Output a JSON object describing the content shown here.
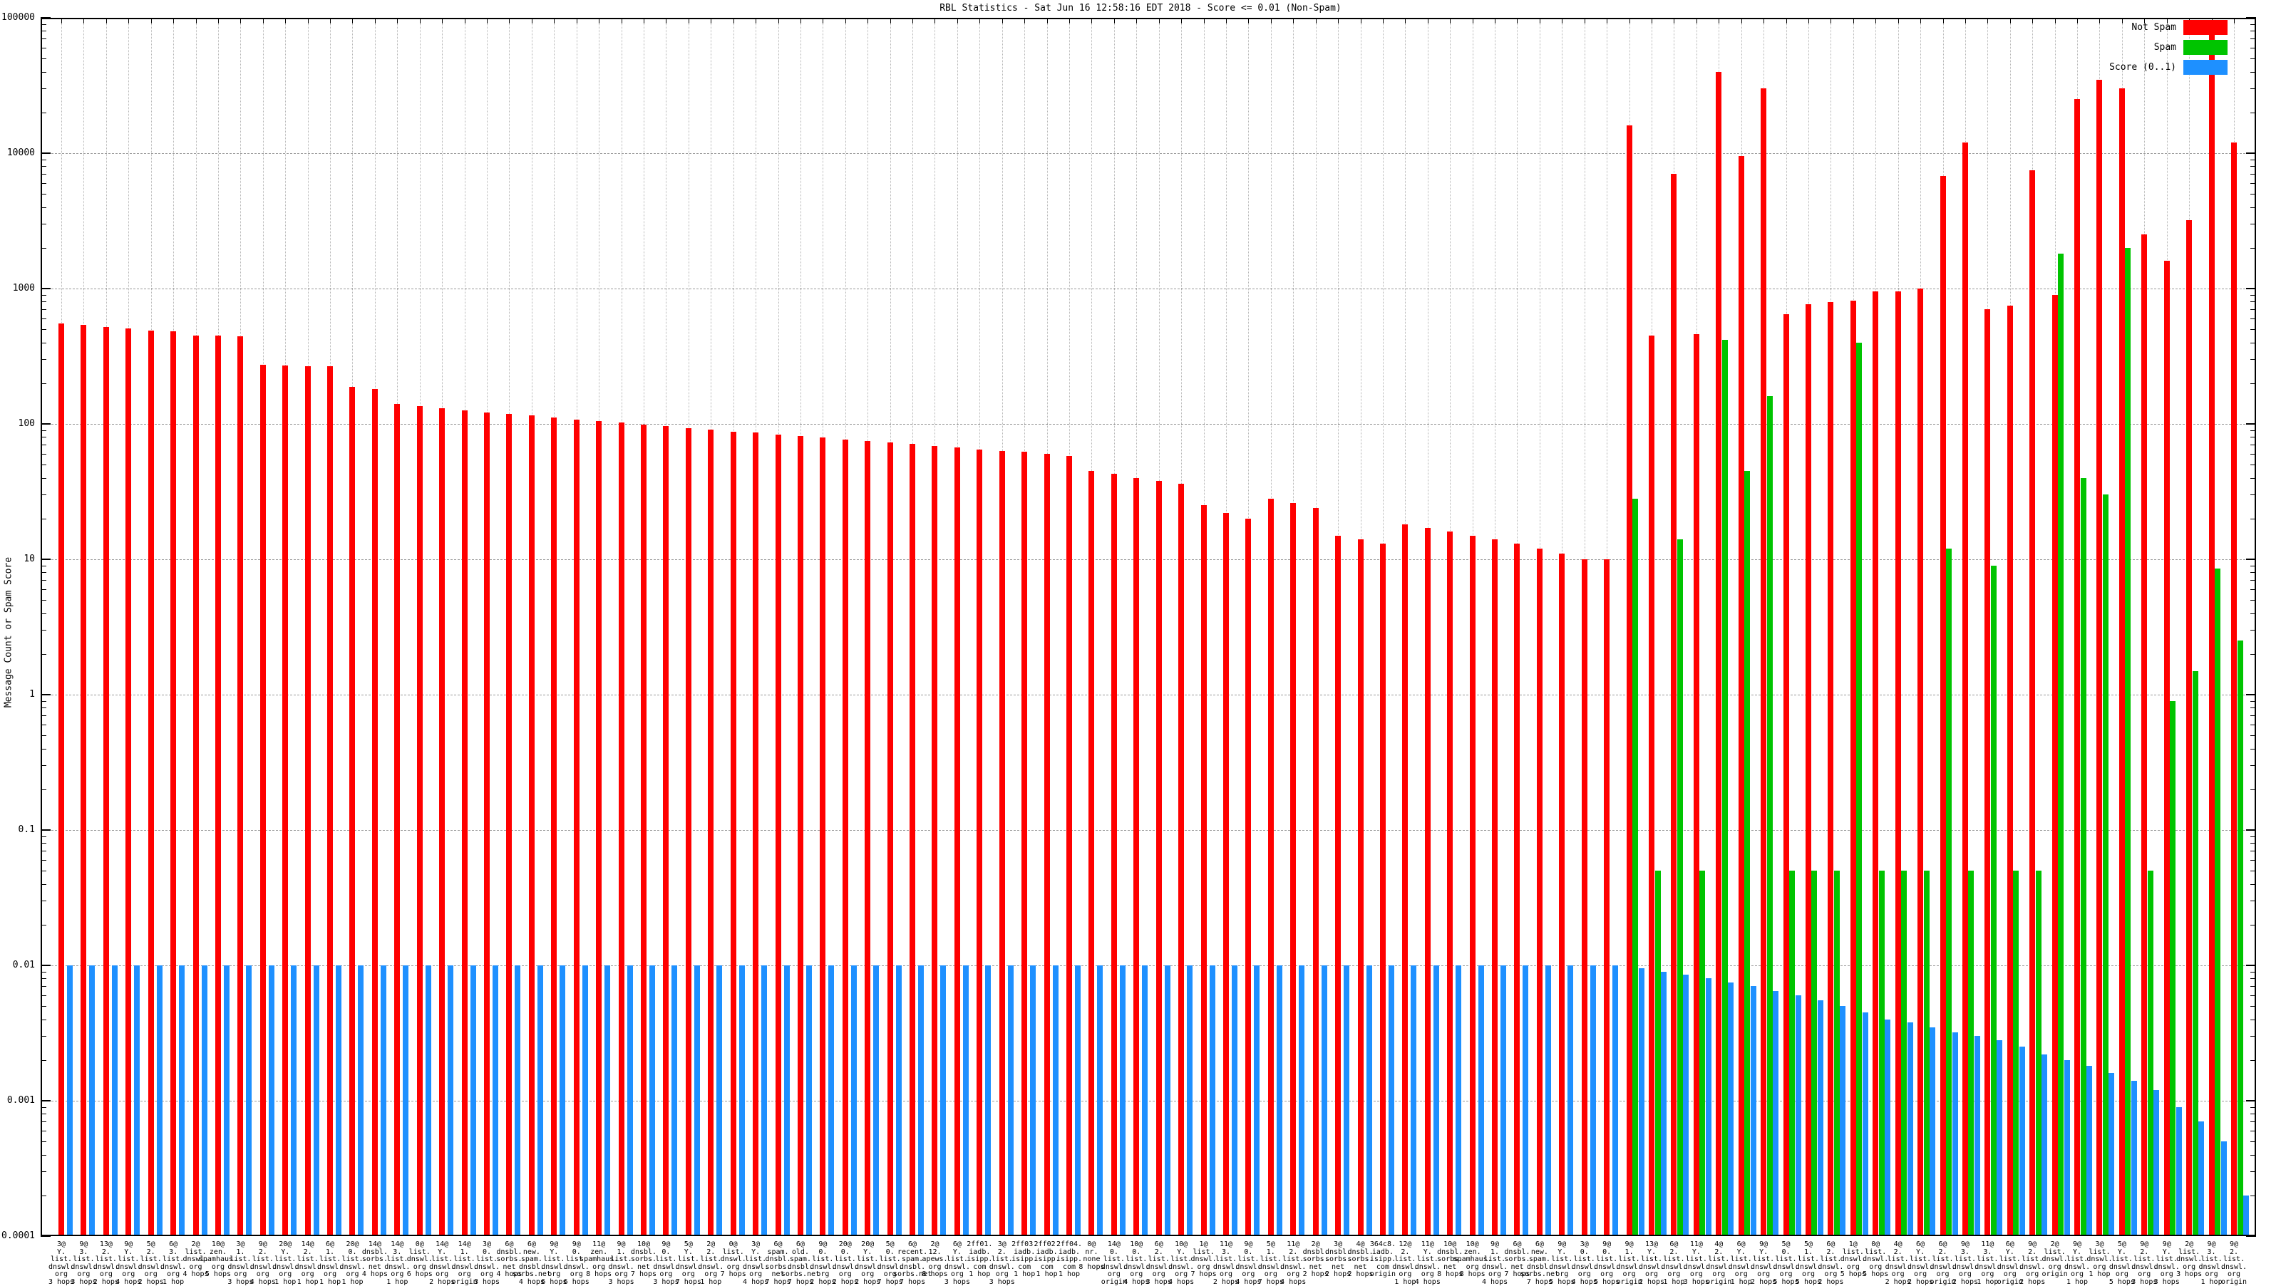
{
  "title": "RBL Statistics - Sat Jun 16 12:58:16 EDT 2018 - Score <= 0.01 (Non-Spam)",
  "ylabel": "Message Count or Spam Score",
  "legend": [
    {
      "label": "Not Spam",
      "color": "#ff0000"
    },
    {
      "label": "Spam",
      "color": "#00c400"
    },
    {
      "label": "Score (0..1)",
      "color": "#1e90ff"
    }
  ],
  "colors": {
    "not_spam": "#ff0000",
    "spam": "#00c400",
    "score": "#1e90ff",
    "grid_h": "#9a9a9a",
    "grid_v": "#b5b5b5",
    "axis": "#000000"
  },
  "y_tick_labels": [
    "100000",
    "10000",
    "1000",
    "100",
    "10",
    "1",
    "0.1",
    "0.01",
    "0.001",
    "0.0001"
  ],
  "chart_data": {
    "type": "bar",
    "y_scale": "log",
    "ylim": [
      0.0001,
      100000
    ],
    "grid": true,
    "legend_position": "top-right",
    "series_names": [
      "Not Spam",
      "Spam",
      "Score (0..1)"
    ],
    "note": "groups = [label lines joined by |, not_spam count, spam count (null = no bar), score 0..1]",
    "groups": [
      [
        "3@|Y.|list.|dnswl.|org|3 hops",
        550,
        null,
        0.01
      ],
      [
        "9@|3.|list.|dnswl.|org|3 hops",
        537,
        null,
        0.01
      ],
      [
        "13@|2.|list.|dnswl.|org|2 hops",
        520,
        null,
        0.01
      ],
      [
        "9@|Y.|list.|dnswl.|org|4 hops",
        505,
        null,
        0.01
      ],
      [
        "5@|2.|list.|dnswl.|org|2 hops",
        492,
        null,
        0.01
      ],
      [
        "6@|3.|list.|dnswl.|org|1 hop",
        483,
        null,
        0.01
      ],
      [
        "2@|list.|dnswl.|org|4 hops",
        450,
        null,
        0.01
      ],
      [
        "10@|zen.|spamhaus.|org|5 hops",
        447,
        null,
        0.01
      ],
      [
        "3@|1.|list.|dnswl.|org|3 hops",
        444,
        null,
        0.01
      ],
      [
        "9@|2.|list.|dnswl.|org|4 hops",
        273,
        null,
        0.01
      ],
      [
        "20@|Y.|list.|dnswl.|org|1 hop",
        270,
        null,
        0.01
      ],
      [
        "14@|2.|list.|dnswl.|org|1 hop",
        266,
        null,
        0.01
      ],
      [
        "6@|1.|list.|dnswl.|org|1 hop",
        266,
        null,
        0.01
      ],
      [
        "20@|0.|list.|dnswl.|org|1 hop",
        188,
        null,
        0.01
      ],
      [
        "14@|dnsbl.|sorbs.|net|4 hops",
        180,
        null,
        0.01
      ],
      [
        "14@|3.|list.|dnswl.|org|1 hop",
        140,
        null,
        0.01
      ],
      [
        "0@|list.|dnswl.|org|6 hops",
        135,
        null,
        0.01
      ],
      [
        "14@|Y.|list.|dnswl.|org|2 hops",
        130,
        null,
        0.01
      ],
      [
        "14@|1.|list.|dnswl.|org|origin",
        126,
        null,
        0.01
      ],
      [
        "3@|0.|list.|dnswl.|org|3 hops",
        122,
        null,
        0.01
      ],
      [
        "6@|dnsbl.|sorbs.|net|4 hops",
        118,
        null,
        0.01
      ],
      [
        "6@|new.|spam.|dnsbl.|sorbs.net|4 hops",
        115,
        null,
        0.01
      ],
      [
        "9@|Y.|list.|dnswl.|org|6 hops",
        111,
        null,
        0.01
      ],
      [
        "9@|0.|list.|dnswl.|org|6 hops",
        108,
        null,
        0.01
      ],
      [
        "11@|zen.|spamhaus.|org|8 hops",
        105,
        null,
        0.01
      ],
      [
        "9@|1.|list.|dnswl.|org|3 hops",
        102,
        null,
        0.01
      ],
      [
        "10@|dnsbl.|sorbs.|net|7 hops",
        99,
        null,
        0.01
      ],
      [
        "9@|0.|list.|dnswl.|org|3 hops",
        96,
        null,
        0.01
      ],
      [
        "5@|Y.|list.|dnswl.|org|7 hops",
        93,
        null,
        0.01
      ],
      [
        "2@|2.|list.|dnswl.|org|1 hop",
        91,
        null,
        0.01
      ],
      [
        "0@|list.|dnswl.|org|7 hops",
        88,
        null,
        0.01
      ],
      [
        "3@|Y.|list.|dnswl.|org|4 hops",
        86,
        null,
        0.01
      ],
      [
        "6@|spam.|dnsbl.|sorbs.|net|7 hops",
        83,
        null,
        0.01
      ],
      [
        "6@|old.|spam.|dnsbl.|sorbs.net|7 hops",
        81,
        null,
        0.01
      ],
      [
        "9@|0.|list.|dnswl.|org|2 hops",
        79,
        null,
        0.01
      ],
      [
        "20@|0.|list.|dnswl.|org|2 hops",
        77,
        null,
        0.01
      ],
      [
        "20@|Y.|list.|dnswl.|org|2 hops",
        75,
        null,
        0.01
      ],
      [
        "5@|0.|list.|dnswl.|org|7 hops",
        73,
        null,
        0.01
      ],
      [
        "6@|recent.|spam.|dnsbl.|sorbs.net|7 hops",
        71,
        null,
        0.01
      ],
      [
        "2@|12.|apews.|org|8 hops",
        69,
        null,
        0.01
      ],
      [
        "6@|Y.|list.|dnswl.|org|3 hops",
        67,
        null,
        0.01
      ],
      [
        "2ff01.|iadb.|isipp.|com|1 hop",
        65,
        null,
        0.01
      ],
      [
        "3@|2.|list.|dnswl.|org|3 hops",
        63,
        null,
        0.01
      ],
      [
        "2ff03.|iadb.|isipp.|com|1 hop",
        62,
        null,
        0.01
      ],
      [
        "2ff02.|iadb.|isipp.|com|1 hop",
        60,
        null,
        0.01
      ],
      [
        "2ff04.|iadb.|isipp.|com|1 hop",
        58,
        null,
        0.01
      ],
      [
        "0@|nr.|none|8 hops",
        45,
        null,
        0.01
      ],
      [
        "14@|0.|list.|dnswl.|org|origin",
        43,
        null,
        0.01
      ],
      [
        "10@|0.|list.|dnswl.|org|4 hops",
        40,
        null,
        0.01
      ],
      [
        "6@|2.|list.|dnswl.|org|3 hops",
        38,
        null,
        0.01
      ],
      [
        "10@|Y.|list.|dnswl.|org|4 hops",
        36,
        null,
        0.01
      ],
      [
        "1@|list.|dnswl.|org|7 hops",
        25,
        null,
        0.01
      ],
      [
        "11@|3.|list.|dnswl.|org|2 hops",
        22,
        null,
        0.01
      ],
      [
        "9@|0.|list.|dnswl.|org|4 hops",
        20,
        null,
        0.01
      ],
      [
        "5@|1.|list.|dnswl.|org|7 hops",
        28,
        null,
        0.01
      ],
      [
        "11@|2.|list.|dnswl.|org|4 hops",
        26,
        null,
        0.01
      ],
      [
        "2@|dnsbl.|sorbs.|net|2 hops",
        24,
        null,
        0.01
      ],
      [
        "3@|dnsbl.|sorbs.|net|2 hops",
        15,
        null,
        0.01
      ],
      [
        "4@|dnsbl.|sorbs.|net|2 hops",
        14,
        null,
        0.01
      ],
      [
        "364c8.|iadb.|isipp.|com|origin",
        13,
        null,
        0.01
      ],
      [
        "12@|2.|list.|dnswl.|org|1 hop",
        18,
        null,
        0.01
      ],
      [
        "11@|Y.|list.|dnswl.|org|4 hops",
        17,
        null,
        0.01
      ],
      [
        "10@|dnsbl.|sorbs.|net|8 hops",
        16,
        null,
        0.01
      ],
      [
        "10@|zen.|spamhaus.|org|8 hops",
        15,
        null,
        0.01
      ],
      [
        "9@|1.|list.|dnswl.|org|4 hops",
        14,
        null,
        0.01
      ],
      [
        "6@|dnsbl.|sorbs.|net|7 hops",
        13,
        null,
        0.01
      ],
      [
        "6@|new.|spam.|dnsbl.|sorbs.net|7 hops",
        12,
        null,
        0.01
      ],
      [
        "9@|Y.|list.|dnswl.|org|5 hops",
        11,
        null,
        0.01
      ],
      [
        "3@|0.|list.|dnswl.|org|4 hops",
        10,
        null,
        0.01
      ],
      [
        "9@|0.|list.|dnswl.|org|5 hops",
        10,
        null,
        0.01
      ],
      [
        "9@|1.|list.|dnswl.|org|origin",
        16000,
        28,
        0.0095
      ],
      [
        "13@|Y.|list.|dnswl.|org|2 hops",
        450,
        0.05,
        0.009
      ],
      [
        "6@|2.|list.|dnswl.|org|1 hop",
        7000,
        14,
        0.0085
      ],
      [
        "11@|Y.|list.|dnswl.|org|3 hops",
        460,
        0.05,
        0.008
      ],
      [
        "4@|2.|list.|dnswl.|org|origin",
        40000,
        420,
        0.0075
      ],
      [
        "6@|Y.|list.|dnswl.|org|1 hop",
        9500,
        45,
        0.007
      ],
      [
        "9@|Y.|list.|dnswl.|org|2 hops",
        30000,
        160,
        0.0065
      ],
      [
        "5@|0.|list.|dnswl.|org|5 hops",
        650,
        0.05,
        0.006
      ],
      [
        "5@|1.|list.|dnswl.|org|5 hops",
        770,
        0.05,
        0.0055
      ],
      [
        "6@|2.|list.|dnswl.|org|2 hops",
        790,
        0.05,
        0.005
      ],
      [
        "1@|list.|dnswl.|org|5 hops",
        810,
        400,
        0.0045
      ],
      [
        "0@|list.|dnswl.|org|5 hops",
        950,
        0.05,
        0.004
      ],
      [
        "4@|2.|list.|dnswl.|org|2 hops",
        950,
        0.05,
        0.0038
      ],
      [
        "6@|Y.|list.|dnswl.|org|2 hops",
        1000,
        0.05,
        0.0035
      ],
      [
        "6@|2.|list.|dnswl.|org|origin",
        6800,
        12,
        0.0032
      ],
      [
        "9@|3.|list.|dnswl.|org|2 hops",
        12000,
        0.05,
        0.003
      ],
      [
        "11@|3.|list.|dnswl.|org|1 hop",
        700,
        9,
        0.0028
      ],
      [
        "6@|Y.|list.|dnswl.|org|origin",
        750,
        0.05,
        0.0025
      ],
      [
        "9@|2.|list.|dnswl.|org|2 hops",
        7500,
        0.05,
        0.0022
      ],
      [
        "2@|list.|dnswl.|org|origin",
        900,
        1800,
        0.002
      ],
      [
        "9@|Y.|list.|dnswl.|org|1 hop",
        25000,
        40,
        0.0018
      ],
      [
        "3@|list.|dnswl.|org|1 hop",
        35000,
        30,
        0.0016
      ],
      [
        "5@|Y.|list.|dnswl.|org|5 hops",
        30000,
        2000,
        0.0014
      ],
      [
        "9@|2.|list.|dnswl.|org|3 hops",
        2500,
        0.05,
        0.0012
      ],
      [
        "9@|Y.|list.|dnswl.|org|3 hops",
        1600,
        0.9,
        0.0009
      ],
      [
        "2@|list.|dnswl.|org|3 hops",
        3200,
        1.5,
        0.0007
      ],
      [
        "9@|3.|list.|dnswl.|org|1 hop",
        80000,
        8.5,
        0.0005
      ],
      [
        "9@|2.|list.|dnswl.|org|origin",
        12000,
        2.5,
        0.0002
      ]
    ]
  }
}
